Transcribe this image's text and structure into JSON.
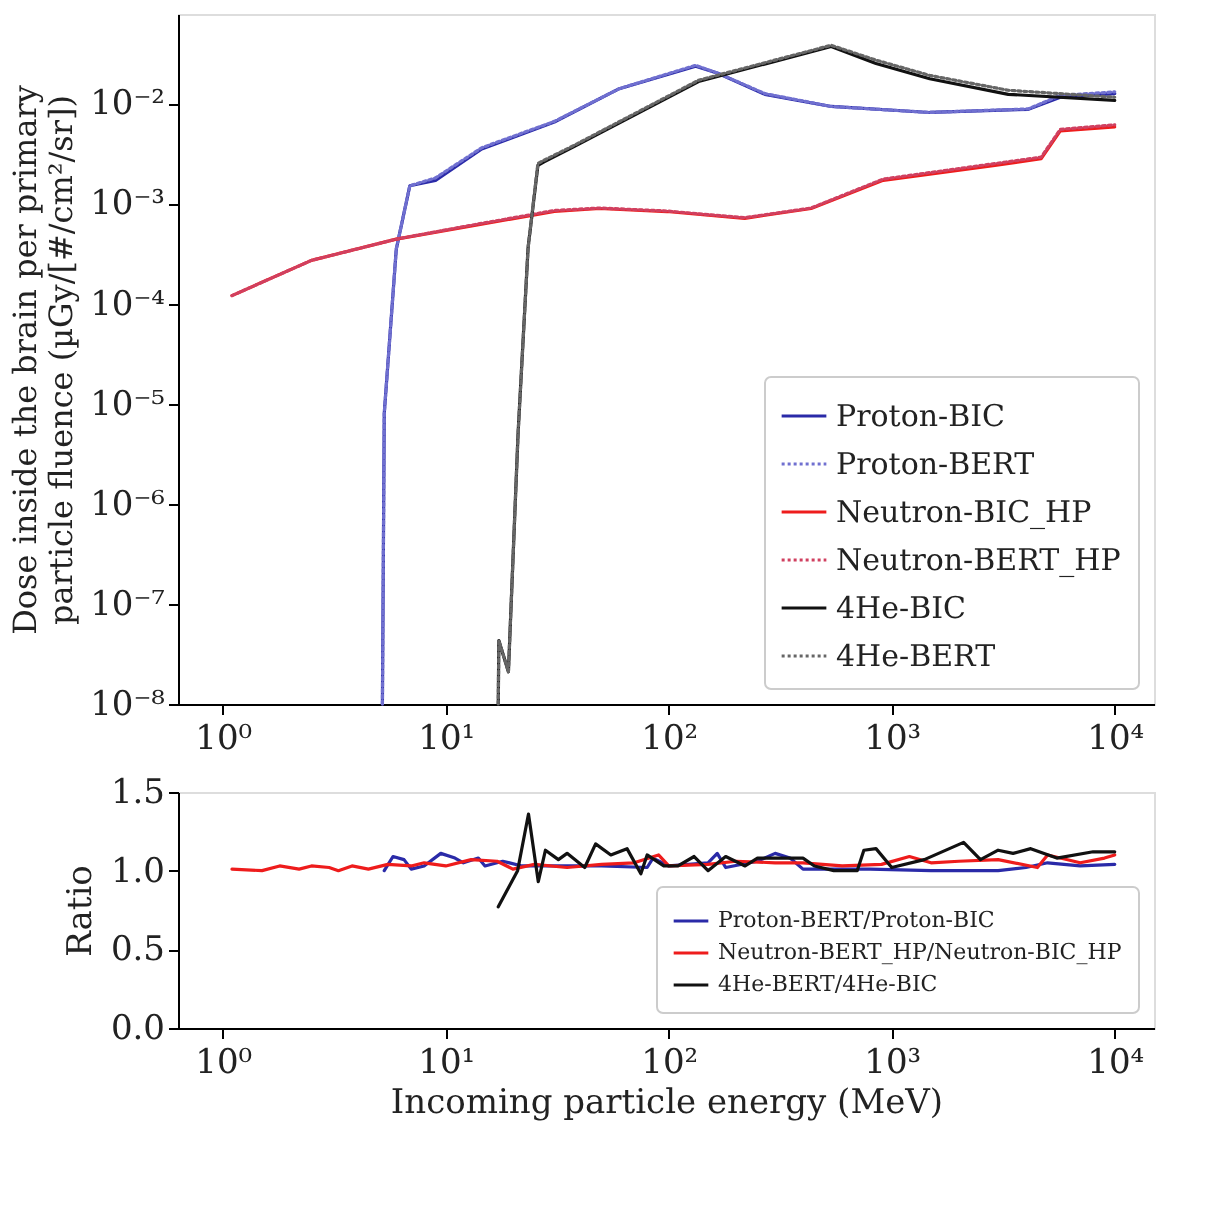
{
  "chart_data": [
    {
      "type": "line",
      "ylabel": "Dose inside the brain per primary\nparticle fluence (µGy/[#/cm²/sr])",
      "log": "xy",
      "grid": false,
      "legend": "bottom right",
      "xlim": [
        0.63,
        15000
      ],
      "xticks": [
        {
          "value": 1,
          "label": "10⁰"
        },
        {
          "value": 10,
          "label": "10¹"
        },
        {
          "value": 100,
          "label": "10²"
        },
        {
          "value": 1000,
          "label": "10³"
        },
        {
          "value": 10000,
          "label": "10⁴"
        }
      ],
      "ylim": [
        1e-08,
        0.078
      ],
      "yticks": [
        {
          "value": 1e-08,
          "label": "10⁻⁸"
        },
        {
          "value": 1e-07,
          "label": "10⁻⁷"
        },
        {
          "value": 1e-06,
          "label": "10⁻⁶"
        },
        {
          "value": 1e-05,
          "label": "10⁻⁵"
        },
        {
          "value": 0.0001,
          "label": "10⁻⁴"
        },
        {
          "value": 0.001,
          "label": "10⁻³"
        },
        {
          "value": 0.01,
          "label": "10⁻²"
        }
      ],
      "series": [
        {
          "name": "Proton-BIC",
          "color": "#2a2aa8",
          "line_style": "solid",
          "x": [
            5.2,
            5.3,
            6.0,
            6.9,
            9.0,
            14.5,
            30.7,
            60,
            132,
            166,
            270,
            535,
            1480,
            4100,
            5700,
            10000
          ],
          "values": [
            1e-08,
            8e-06,
            0.00035,
            0.0015,
            0.0017,
            0.0035,
            0.0065,
            0.014,
            0.0235,
            0.02,
            0.0123,
            0.0093,
            0.0081,
            0.0087,
            0.0115,
            0.0125
          ]
        },
        {
          "name": "Proton-BERT",
          "color": "#7070d0",
          "line_style": "dotted",
          "x": [
            5.2,
            5.3,
            6.0,
            6.9,
            9.0,
            14.5,
            30.7,
            60,
            132,
            166,
            270,
            535,
            1480,
            4100,
            5700,
            10000
          ],
          "values": [
            1e-08,
            8e-06,
            0.00035,
            0.0015,
            0.0018,
            0.0036,
            0.0066,
            0.014,
            0.024,
            0.02,
            0.0125,
            0.0093,
            0.0081,
            0.0088,
            0.012,
            0.013
          ]
        },
        {
          "name": "Neutron-BIC_HP",
          "color": "#ee1c1c",
          "line_style": "solid",
          "x": [
            1.1,
            2.5,
            6.0,
            12.7,
            30.7,
            49,
            98,
            219,
            435,
            915,
            2900,
            4680,
            5700,
            10000
          ],
          "values": [
            0.00012,
            0.00027,
            0.00044,
            0.00059,
            0.00083,
            0.00089,
            0.00083,
            0.00071,
            0.00089,
            0.0017,
            0.0024,
            0.0028,
            0.0053,
            0.0058
          ]
        },
        {
          "name": "Neutron-BERT_HP",
          "color": "#d04060",
          "line_style": "dotted",
          "x": [
            1.1,
            2.5,
            6.0,
            12.7,
            30.7,
            49,
            98,
            219,
            435,
            915,
            2900,
            4680,
            5700,
            10000
          ],
          "values": [
            0.00012,
            0.00027,
            0.00044,
            0.0006,
            0.00085,
            0.0009,
            0.00084,
            0.00072,
            0.0009,
            0.00175,
            0.0025,
            0.0029,
            0.0055,
            0.0061
          ]
        },
        {
          "name": "4He-BIC",
          "color": "#111111",
          "line_style": "solid",
          "x": [
            17.2,
            17.3,
            19.1,
            21.1,
            23.4,
            25.9,
            27.6,
            37.6,
            136,
            535,
            850,
            1480,
            3330,
            10000
          ],
          "values": [
            1e-08,
            4.3e-08,
            2.1e-08,
            5e-06,
            0.00036,
            0.0024,
            0.0026,
            0.0037,
            0.0165,
            0.037,
            0.025,
            0.0176,
            0.0123,
            0.0107
          ]
        },
        {
          "name": "4He-BERT",
          "color": "#666666",
          "line_style": "dotted",
          "x": [
            17.2,
            17.3,
            19.1,
            21.1,
            23.4,
            25.9,
            27.6,
            37.6,
            136,
            535,
            850,
            1480,
            3330,
            10000
          ],
          "values": [
            1e-08,
            4.3e-08,
            2.1e-08,
            5e-06,
            0.00036,
            0.0025,
            0.0027,
            0.0038,
            0.017,
            0.038,
            0.027,
            0.019,
            0.0135,
            0.0115
          ]
        }
      ]
    },
    {
      "type": "line",
      "xlabel": "Incoming particle energy (MeV)",
      "ylabel": "Ratio",
      "log": "x",
      "grid": false,
      "legend": "bottom right",
      "xlim": [
        0.63,
        15000
      ],
      "xticks": [
        {
          "value": 1,
          "label": "10⁰"
        },
        {
          "value": 10,
          "label": "10¹"
        },
        {
          "value": 100,
          "label": "10²"
        },
        {
          "value": 1000,
          "label": "10³"
        },
        {
          "value": 10000,
          "label": "10⁴"
        }
      ],
      "ylim": [
        0,
        1.5
      ],
      "yticks": [
        {
          "value": 0,
          "label": "0.0"
        },
        {
          "value": 0.5,
          "label": "0.5"
        },
        {
          "value": 1,
          "label": "1.0"
        },
        {
          "value": 1.5,
          "label": "1.5"
        }
      ],
      "series": [
        {
          "name": "Proton-BERT/Proton-BIC",
          "color": "#2a2aa8",
          "x": [
            5.3,
            5.8,
            6.5,
            7,
            8,
            9.5,
            11,
            12,
            14,
            15,
            18,
            22,
            30,
            50,
            80,
            85,
            100,
            150,
            165,
            180,
            250,
            300,
            350,
            400,
            800,
            1500,
            3000,
            4000,
            5000,
            7000,
            10000
          ],
          "values": [
            1.0,
            1.09,
            1.07,
            1.01,
            1.03,
            1.11,
            1.08,
            1.05,
            1.08,
            1.03,
            1.06,
            1.03,
            1.03,
            1.03,
            1.02,
            1.08,
            1.03,
            1.05,
            1.11,
            1.02,
            1.06,
            1.11,
            1.08,
            1.01,
            1.01,
            1.0,
            1.0,
            1.02,
            1.05,
            1.03,
            1.04
          ]
        },
        {
          "name": "Neutron-BERT_HP/Neutron-BIC_HP",
          "color": "#ee1c1c",
          "x": [
            1.1,
            1.5,
            1.8,
            2.2,
            2.5,
            3,
            3.3,
            3.8,
            4.5,
            5.5,
            7,
            8,
            10,
            13,
            17,
            20,
            25,
            35,
            50,
            70,
            90,
            100,
            150,
            200,
            300,
            400,
            600,
            900,
            1200,
            1500,
            2000,
            3000,
            4500,
            5000,
            7000,
            9000,
            10000
          ],
          "values": [
            1.01,
            1.0,
            1.03,
            1.01,
            1.03,
            1.02,
            1.0,
            1.03,
            1.01,
            1.04,
            1.03,
            1.05,
            1.03,
            1.07,
            1.06,
            1.01,
            1.04,
            1.02,
            1.04,
            1.05,
            1.1,
            1.03,
            1.04,
            1.06,
            1.05,
            1.05,
            1.03,
            1.04,
            1.09,
            1.05,
            1.06,
            1.07,
            1.02,
            1.1,
            1.05,
            1.08,
            1.1
          ]
        },
        {
          "name": "4He-BERT/4He-BIC",
          "color": "#111111",
          "x": [
            17.2,
            21,
            23.5,
            26,
            28,
            32,
            35,
            42,
            47,
            55,
            65,
            75,
            80,
            95,
            110,
            130,
            150,
            180,
            220,
            250,
            400,
            450,
            550,
            700,
            750,
            850,
            1000,
            1400,
            2100,
            2500,
            3000,
            3500,
            4200,
            5500,
            8000,
            10000
          ],
          "values": [
            0.77,
            1.0,
            1.36,
            0.93,
            1.13,
            1.07,
            1.11,
            1.02,
            1.17,
            1.1,
            1.14,
            0.98,
            1.1,
            1.03,
            1.03,
            1.09,
            1.0,
            1.09,
            1.03,
            1.08,
            1.08,
            1.03,
            1.0,
            1.0,
            1.13,
            1.14,
            1.02,
            1.07,
            1.18,
            1.07,
            1.13,
            1.11,
            1.14,
            1.08,
            1.12,
            1.12
          ]
        }
      ]
    }
  ]
}
